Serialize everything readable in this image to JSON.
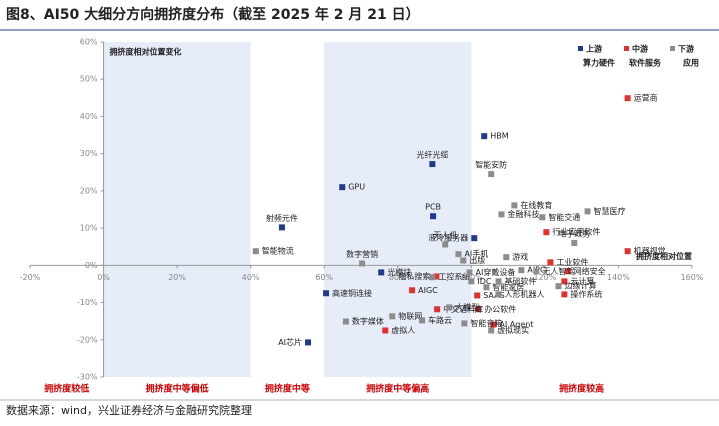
{
  "title": "图8、AI50 大细分方向拥挤度分布（截至 2025 年 2 月 21 日）",
  "source": "数据来源：wind，兴业证券经济与金融研究院整理",
  "chart_data": {
    "type": "scatter",
    "y_annotation": "拥挤度相对位置变化",
    "x_annotation": "拥挤度相对位置",
    "xlim": [
      -20,
      160
    ],
    "ylim": [
      -30,
      60
    ],
    "xticks": [
      {
        "value": -20,
        "label": "-20%"
      },
      {
        "value": 0,
        "label": "0%"
      },
      {
        "value": 20,
        "label": "20%"
      },
      {
        "value": 40,
        "label": "40%"
      },
      {
        "value": 60,
        "label": "60%"
      },
      {
        "value": 80,
        "label": "80%"
      },
      {
        "value": 100,
        "label": "100%"
      },
      {
        "value": 120,
        "label": "120%"
      },
      {
        "value": 140,
        "label": "140%"
      },
      {
        "value": 160,
        "label": "160%"
      }
    ],
    "yticks": [
      {
        "value": -30,
        "label": "-30%"
      },
      {
        "value": -20,
        "label": "-20%"
      },
      {
        "value": -10,
        "label": "-10%"
      },
      {
        "value": 0,
        "label": "0%"
      },
      {
        "value": 10,
        "label": "10%"
      },
      {
        "value": 20,
        "label": "20%"
      },
      {
        "value": 30,
        "label": "30%"
      },
      {
        "value": 40,
        "label": "40%"
      },
      {
        "value": 50,
        "label": "50%"
      },
      {
        "value": 60,
        "label": "60%"
      }
    ],
    "zones": [
      {
        "label": "拥挤度较低",
        "xlim": [
          -20,
          0
        ],
        "shaded": false
      },
      {
        "label": "拥挤度中等偏低",
        "xlim": [
          0,
          40
        ],
        "shaded": true
      },
      {
        "label": "拥挤度中等",
        "xlim": [
          40,
          60
        ],
        "shaded": false
      },
      {
        "label": "拥挤度中等偏高",
        "xlim": [
          60,
          100
        ],
        "shaded": true
      },
      {
        "label": "拥挤度较高",
        "xlim": [
          100,
          160
        ],
        "shaded": false
      }
    ],
    "series": [
      {
        "name": "上游",
        "group": "算力硬件",
        "color": "#1f3a8a",
        "labels": [
          "HBM",
          "光纤光缆",
          "GPU",
          "PCB",
          "射频元件",
          "液冷服务器",
          "光模块",
          "高速铜连接",
          "AI芯片"
        ],
        "x": [
          103.5,
          89.4,
          64.9,
          89.6,
          48.5,
          100.8,
          75.5,
          60.5,
          55.6
        ],
        "values": [
          34.7,
          27.2,
          21.0,
          13.2,
          10.2,
          7.3,
          -1.9,
          -7.5,
          -20.7
        ]
      },
      {
        "name": "中游",
        "group": "软件服务",
        "color": "#e0312f",
        "labels": [
          "运营商",
          "行业应用软件",
          "机器视觉",
          "网络安全",
          "工业软件",
          "云计算",
          "操作系统",
          "AIGC",
          "隐私搜索",
          "SAAS",
          "办公软件",
          "AI Agent",
          "虚拟人",
          "中文语料库"
        ],
        "x": [
          142.5,
          120.4,
          142.5,
          126.2,
          121.5,
          125.3,
          125.3,
          83.9,
          90.5,
          101.6,
          101.9,
          106.0,
          76.6,
          90.7
        ],
        "values": [
          44.9,
          8.9,
          3.8,
          -1.6,
          0.8,
          -4.3,
          -7.8,
          -6.7,
          -3.0,
          -8.1,
          -11.8,
          -15.9,
          -17.5,
          -11.8
        ]
      },
      {
        "name": "下游",
        "group": "应用",
        "color": "#8c8c8c",
        "labels": [
          "智能安防",
          "在线教育",
          "智慧医疗",
          "金融科技",
          "智能交通",
          "智能物流",
          "电子政务",
          "无人机",
          "数字营销",
          "AI手机",
          "出版",
          "游戏",
          "AIPC",
          "无人智驾",
          "工控系统",
          "AI穿戴设备",
          "IDC",
          "智能家居",
          "基础软件",
          "边缘计算",
          "人形机器人",
          "数字媒体",
          "物联网",
          "大模型",
          "车路云",
          "智能音箱",
          "虚拟现实"
        ],
        "x": [
          105.4,
          111.7,
          131.6,
          108.2,
          119.3,
          41.4,
          128.0,
          92.9,
          70.3,
          96.5,
          97.8,
          109.5,
          113.6,
          117.7,
          89.4,
          99.5,
          100.0,
          104.1,
          107.4,
          123.7,
          107.4,
          65.9,
          78.5,
          94.0,
          86.6,
          98.1,
          105.4
        ],
        "values": [
          24.5,
          16.1,
          14.5,
          13.7,
          12.9,
          3.8,
          6.0,
          5.6,
          0.5,
          3.0,
          1.3,
          2.2,
          -1.3,
          -1.6,
          -3.2,
          -1.9,
          -4.3,
          -5.9,
          -4.3,
          -5.6,
          -7.8,
          -15.1,
          -13.7,
          -11.3,
          -14.8,
          -15.6,
          -17.5
        ]
      }
    ]
  }
}
